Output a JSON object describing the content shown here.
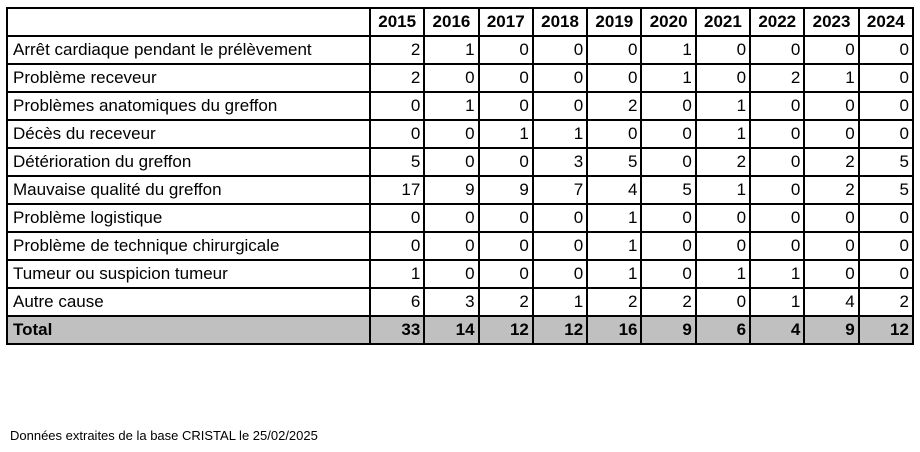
{
  "table": {
    "years": [
      "2015",
      "2016",
      "2017",
      "2018",
      "2019",
      "2020",
      "2021",
      "2022",
      "2023",
      "2024"
    ],
    "rows": [
      {
        "label": "Arrêt cardiaque pendant le prélèvement",
        "values": [
          "2",
          "1",
          "0",
          "0",
          "0",
          "1",
          "0",
          "0",
          "0",
          "0"
        ]
      },
      {
        "label": "Problème receveur",
        "values": [
          "2",
          "0",
          "0",
          "0",
          "0",
          "1",
          "0",
          "2",
          "1",
          "0"
        ]
      },
      {
        "label": "Problèmes anatomiques du greffon",
        "values": [
          "0",
          "1",
          "0",
          "0",
          "2",
          "0",
          "1",
          "0",
          "0",
          "0"
        ]
      },
      {
        "label": "Décès du receveur",
        "values": [
          "0",
          "0",
          "1",
          "1",
          "0",
          "0",
          "1",
          "0",
          "0",
          "0"
        ]
      },
      {
        "label": "Détérioration du greffon",
        "values": [
          "5",
          "0",
          "0",
          "3",
          "5",
          "0",
          "2",
          "0",
          "2",
          "5"
        ]
      },
      {
        "label": "Mauvaise qualité du greffon",
        "values": [
          "17",
          "9",
          "9",
          "7",
          "4",
          "5",
          "1",
          "0",
          "2",
          "5"
        ]
      },
      {
        "label": "Problème logistique",
        "values": [
          "0",
          "0",
          "0",
          "0",
          "1",
          "0",
          "0",
          "0",
          "0",
          "0"
        ]
      },
      {
        "label": "Problème de technique chirurgicale",
        "values": [
          "0",
          "0",
          "0",
          "0",
          "1",
          "0",
          "0",
          "0",
          "0",
          "0"
        ]
      },
      {
        "label": "Tumeur ou suspicion tumeur",
        "values": [
          "1",
          "0",
          "0",
          "0",
          "1",
          "0",
          "1",
          "1",
          "0",
          "0"
        ]
      },
      {
        "label": "Autre cause",
        "values": [
          "6",
          "3",
          "2",
          "1",
          "2",
          "2",
          "0",
          "1",
          "4",
          "2"
        ]
      }
    ],
    "total": {
      "label": "Total",
      "values": [
        "33",
        "14",
        "12",
        "12",
        "16",
        "9",
        "6",
        "4",
        "9",
        "12"
      ]
    }
  },
  "footnote": "Données extraites de la base CRISTAL le 25/02/2025",
  "colors": {
    "border": "#000000",
    "total_background": "#c0c0c0"
  }
}
